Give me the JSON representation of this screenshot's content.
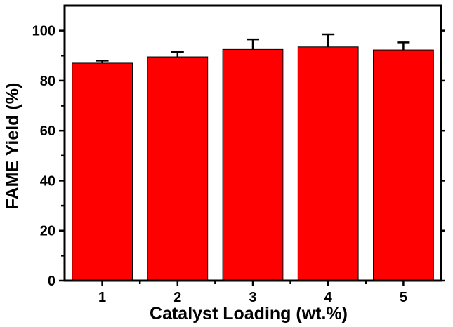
{
  "chart_data": {
    "type": "bar",
    "categories": [
      "1",
      "2",
      "3",
      "4",
      "5"
    ],
    "values": [
      87,
      89.5,
      92.5,
      93.5,
      92.3
    ],
    "errors": [
      1.0,
      2.0,
      4.0,
      5.0,
      3.0
    ],
    "title": "",
    "xlabel": "Catalyst Loading (wt.%)",
    "ylabel": "FAME Yield (%)",
    "ylim": [
      0,
      110
    ],
    "yticks": [
      0,
      20,
      40,
      60,
      80,
      100
    ],
    "grid": false,
    "bar_color": "#ff0000",
    "axis_color": "#000000"
  }
}
